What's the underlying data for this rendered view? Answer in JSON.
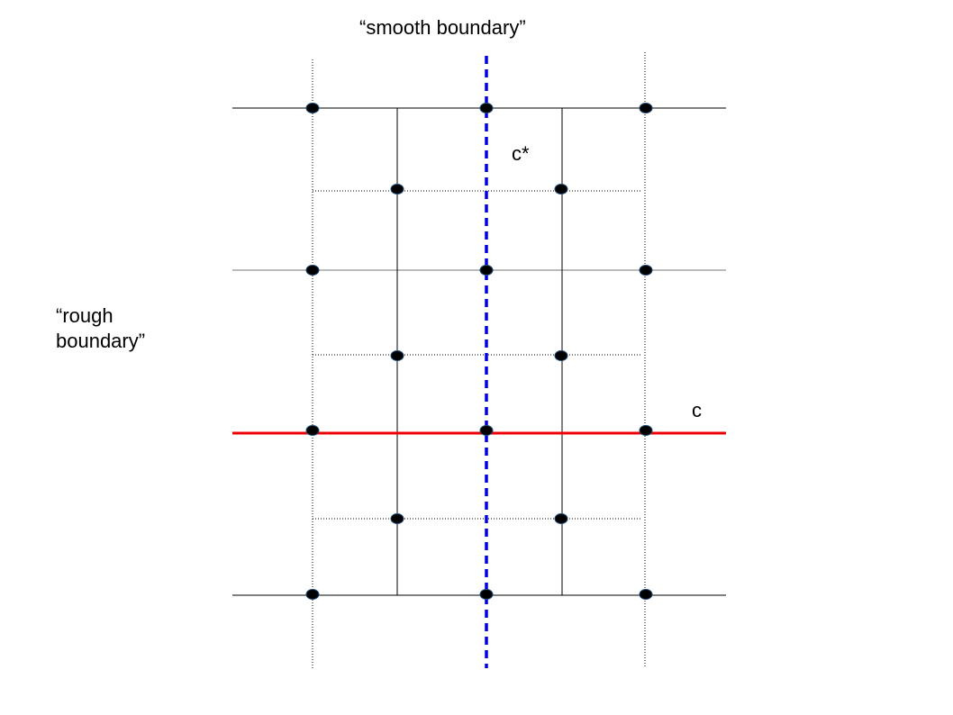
{
  "labels": {
    "smooth_boundary": "“smooth boundary”",
    "rough_boundary_line1": "“rough",
    "rough_boundary_line2": "boundary”",
    "c_star": "c*",
    "c": "c"
  },
  "colors": {
    "lattice": "#000000",
    "dotted": "#000000",
    "gray_line": "#bbbbbb",
    "red_path": "#ee0000",
    "blue_path": "#0000dd",
    "vertex_fill": "#000000",
    "vertex_stroke": "#1f4e79"
  }
}
